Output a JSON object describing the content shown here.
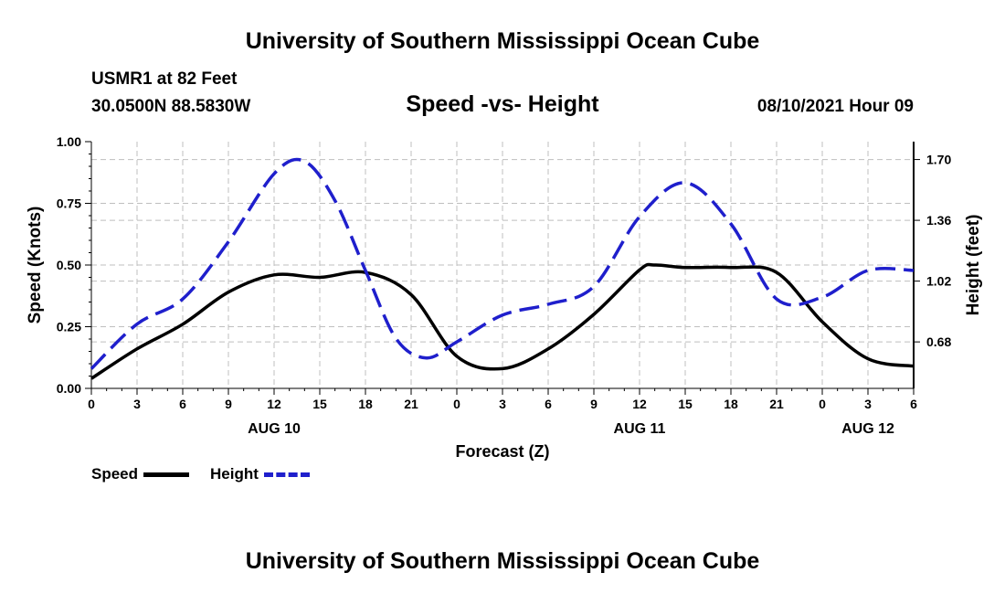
{
  "header": {
    "title": "University of Southern Mississippi Ocean Cube",
    "station_line1": "USMR1 at 82 Feet",
    "station_line2": "30.0500N  88.5830W",
    "subtitle": "Speed -vs- Height",
    "datetime": "08/10/2021 Hour 09"
  },
  "footer": {
    "title": "University of Southern Mississippi Ocean Cube"
  },
  "legend": {
    "speed_label": "Speed",
    "height_label": "Height"
  },
  "colors": {
    "speed": "#000000",
    "height": "#1f1fcc",
    "grid": "#bfbfbf"
  },
  "chart_data": {
    "type": "line",
    "title": "Speed -vs- Height",
    "xlabel": "Forecast (Z)",
    "ylabel": "Speed (Knots)",
    "y2label": "Height (feet)",
    "x_unit": "hours since 2021-08-10 00Z",
    "xlim": [
      0,
      54
    ],
    "ylim": [
      0,
      1.0
    ],
    "y2lim": [
      0.42,
      1.8
    ],
    "x_ticks": [
      0,
      3,
      6,
      9,
      12,
      15,
      18,
      21,
      24,
      27,
      30,
      33,
      36,
      39,
      42,
      45,
      48,
      51,
      54
    ],
    "x_tick_labels": [
      "0",
      "3",
      "6",
      "9",
      "12",
      "15",
      "18",
      "21",
      "0",
      "3",
      "6",
      "9",
      "12",
      "15",
      "18",
      "21",
      "0",
      "3",
      "6"
    ],
    "date_labels": [
      {
        "label": "AUG 10",
        "x": 12
      },
      {
        "label": "AUG 11",
        "x": 36
      },
      {
        "label": "AUG 12",
        "x": 51
      }
    ],
    "y_ticks": [
      0.0,
      0.25,
      0.5,
      0.75,
      1.0
    ],
    "y_tick_labels": [
      "0.00",
      "0.25",
      "0.50",
      "0.75",
      "1.00"
    ],
    "y2_ticks": [
      0.68,
      1.02,
      1.36,
      1.7
    ],
    "y2_tick_labels": [
      "0.68",
      "1.02",
      "1.36",
      "1.70"
    ],
    "grid": true,
    "series": [
      {
        "name": "Speed",
        "axis": "left",
        "style": "solid",
        "x": [
          0,
          3,
          6,
          9,
          12,
          15,
          18,
          21,
          24,
          27,
          30,
          33,
          36,
          37,
          39,
          42,
          45,
          48,
          51,
          54
        ],
        "values": [
          0.04,
          0.16,
          0.26,
          0.39,
          0.46,
          0.45,
          0.47,
          0.38,
          0.13,
          0.08,
          0.16,
          0.3,
          0.48,
          0.5,
          0.49,
          0.49,
          0.47,
          0.27,
          0.12,
          0.09
        ]
      },
      {
        "name": "Height",
        "axis": "right",
        "style": "dashed",
        "x": [
          0,
          3,
          6,
          9,
          12,
          14,
          16,
          18,
          20,
          22,
          24,
          27,
          30,
          33,
          36,
          39,
          42,
          45,
          48,
          51,
          54
        ],
        "values": [
          0.53,
          0.78,
          0.92,
          1.24,
          1.62,
          1.69,
          1.47,
          1.08,
          0.7,
          0.59,
          0.68,
          0.83,
          0.89,
          0.99,
          1.38,
          1.57,
          1.34,
          0.92,
          0.93,
          1.08,
          1.08
        ]
      }
    ]
  }
}
